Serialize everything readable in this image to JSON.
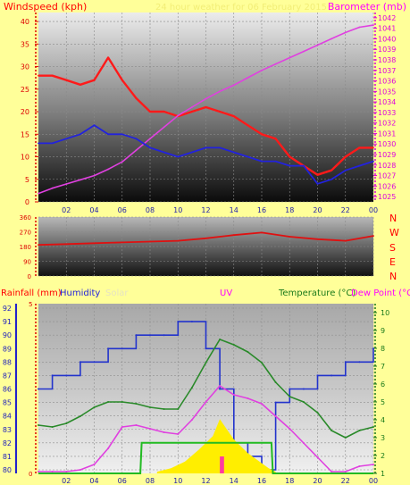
{
  "header": {
    "left_label": "Windspeed (kph)",
    "center_label": "24 hour weather for 06 February 2015",
    "right_label": "Barometer (mb)"
  },
  "wind_dir_labels": [
    "N",
    "W",
    "S",
    "E",
    "N"
  ],
  "lower_header": {
    "rainfall": "Rainfall (mm)",
    "humidity": "Humidity",
    "solar": "Solar",
    "uv": "UV",
    "temperature": "Temperature (°C)",
    "dew_point": "Dew Point (°C"
  },
  "colors": {
    "background": "#ffff99",
    "wind": "#ff1a1a",
    "wind_avg": "#2222dd",
    "barometer": "#e040e0",
    "wind_dir": "#e01010",
    "humidity": "#2233cc",
    "temperature": "#2a8a2a",
    "dew_point": "#e040e0",
    "solar": "#ffee00",
    "uv": "#ff3ba0",
    "rain": "#22bb22"
  },
  "chart_data": [
    {
      "type": "line",
      "title": "24 hour weather for 06 February 2015",
      "xlabel": "",
      "ylabel": "Windspeed (kph)",
      "y2label": "Barometer (mb)",
      "x_ticks": [
        "02",
        "04",
        "06",
        "08",
        "10",
        "12",
        "14",
        "16",
        "18",
        "20",
        "22",
        "00"
      ],
      "ylim": [
        0,
        42
      ],
      "y_ticks": [
        0,
        5,
        10,
        15,
        20,
        25,
        30,
        35,
        40
      ],
      "y2lim": [
        1024.5,
        1042.5
      ],
      "y2_ticks": [
        1025,
        1026,
        1027,
        1028,
        1029,
        1030,
        1031,
        1032,
        1033,
        1034,
        1035,
        1036,
        1037,
        1038,
        1039,
        1040,
        1041,
        1042
      ],
      "x": [
        0,
        1,
        2,
        3,
        4,
        5,
        6,
        7,
        8,
        9,
        10,
        11,
        12,
        13,
        14,
        15,
        16,
        17,
        18,
        19,
        20,
        21,
        22,
        23,
        24
      ],
      "series": [
        {
          "name": "Windspeed (kph)",
          "axis": "left",
          "values": [
            28,
            28,
            27,
            26,
            27,
            32,
            27,
            23,
            20,
            20,
            19,
            20,
            21,
            20,
            19,
            17,
            15,
            14,
            10,
            8,
            6,
            7,
            10,
            12,
            12
          ]
        },
        {
          "name": "Barometer (mb)",
          "axis": "right",
          "values": [
            1025.3,
            1025.8,
            1026.2,
            1026.6,
            1027.0,
            1027.6,
            1028.3,
            1029.4,
            1030.5,
            1031.6,
            1032.7,
            1033.5,
            1034.3,
            1035.0,
            1035.6,
            1036.3,
            1037.0,
            1037.6,
            1038.2,
            1038.8,
            1039.4,
            1040.0,
            1040.6,
            1041.1,
            1041.3
          ]
        },
        {
          "axis": "left",
          "values": [
            13,
            13,
            14,
            15,
            17,
            15,
            15,
            14,
            12,
            11,
            10,
            11,
            12,
            12,
            11,
            10,
            9,
            9,
            8,
            8,
            4,
            5,
            7,
            8,
            9
          ]
        }
      ]
    },
    {
      "type": "line",
      "xlabel": "",
      "ylabel": "",
      "ylim": [
        0,
        360
      ],
      "y_ticks": [
        0,
        90,
        180,
        270,
        360
      ],
      "x": [
        0,
        2,
        4,
        6,
        8,
        10,
        12,
        14,
        16,
        18,
        20,
        22,
        24
      ],
      "series": [
        {
          "values": [
            190,
            195,
            200,
            205,
            210,
            215,
            230,
            250,
            265,
            240,
            225,
            215,
            245
          ]
        }
      ]
    },
    {
      "type": "line",
      "xlabel": "",
      "ylabel": "",
      "x_ticks": [
        "02",
        "04",
        "06",
        "08",
        "10",
        "12",
        "14",
        "16",
        "18",
        "20",
        "22",
        "00"
      ],
      "y_ticks_humidity": [
        80,
        81,
        82,
        83,
        84,
        85,
        86,
        87,
        88,
        89,
        90,
        91,
        92
      ],
      "y_ticks_rain": [
        0,
        5
      ],
      "y_ticks_temperature": [
        1,
        2,
        3,
        4,
        5,
        6,
        7,
        8,
        9,
        10
      ],
      "rain_lim": [
        0,
        5
      ],
      "humidity_lim": [
        80,
        92
      ],
      "temperature_lim": [
        1,
        10.5
      ],
      "series": [
        {
          "name": "Humidity",
          "axis": "humidity",
          "x": [
            0,
            1,
            2,
            3,
            4,
            5,
            6,
            7,
            8,
            9,
            10,
            11,
            12,
            13,
            14,
            15,
            16,
            17,
            18,
            19,
            20,
            21,
            22,
            23,
            24
          ],
          "values": [
            86,
            87,
            87,
            88,
            88,
            89,
            89,
            90,
            90,
            90,
            91,
            91,
            89,
            86,
            82,
            81,
            80,
            85,
            86,
            86,
            87,
            87,
            88,
            88,
            89
          ]
        },
        {
          "name": "Temperature (°C)",
          "axis": "temperature",
          "x": [
            0,
            1,
            2,
            3,
            4,
            5,
            6,
            7,
            8,
            9,
            10,
            11,
            12,
            13,
            14,
            15,
            16,
            17,
            18,
            19,
            20,
            21,
            22,
            23,
            24
          ],
          "values": [
            3.7,
            3.6,
            3.8,
            4.2,
            4.7,
            5.0,
            5.0,
            4.9,
            4.7,
            4.6,
            4.6,
            5.8,
            7.2,
            8.5,
            8.2,
            7.8,
            7.2,
            6.1,
            5.3,
            5.0,
            4.4,
            3.4,
            3.0,
            3.4,
            3.6
          ]
        },
        {
          "name": "Dew Point (°C",
          "axis": "temperature",
          "x": [
            0,
            1,
            2,
            3,
            4,
            5,
            6,
            7,
            8,
            9,
            10,
            11,
            12,
            13,
            14,
            15,
            16,
            17,
            18,
            19,
            20,
            21,
            22,
            23,
            24
          ],
          "values": [
            1.1,
            1.1,
            1.1,
            1.2,
            1.5,
            2.4,
            3.6,
            3.7,
            3.5,
            3.3,
            3.2,
            4.0,
            5.0,
            5.9,
            5.4,
            5.2,
            4.9,
            4.2,
            3.5,
            2.7,
            1.9,
            1.1,
            1.1,
            1.4,
            1.5
          ]
        },
        {
          "name": "Solar",
          "axis": "rain",
          "x": [
            8.5,
            9.5,
            10.5,
            11.5,
            12,
            12.5,
            13,
            13.5,
            14,
            14.5,
            15,
            15.5,
            16,
            16.5,
            17
          ],
          "values": [
            0.05,
            0.15,
            0.35,
            0.7,
            0.9,
            1.1,
            1.6,
            1.3,
            1.0,
            0.8,
            0.6,
            0.45,
            0.3,
            0.15,
            0.05
          ]
        },
        {
          "name": "UV",
          "axis": "rain",
          "x": [
            13,
            13.3
          ],
          "values": [
            0.5,
            0.5
          ]
        },
        {
          "name": "Rainfall (mm)",
          "axis": "rain",
          "x": [
            0,
            7.3,
            7.4,
            16.7,
            16.8,
            24
          ],
          "values": [
            0,
            0,
            0.9,
            0.9,
            0,
            0
          ]
        }
      ]
    }
  ]
}
